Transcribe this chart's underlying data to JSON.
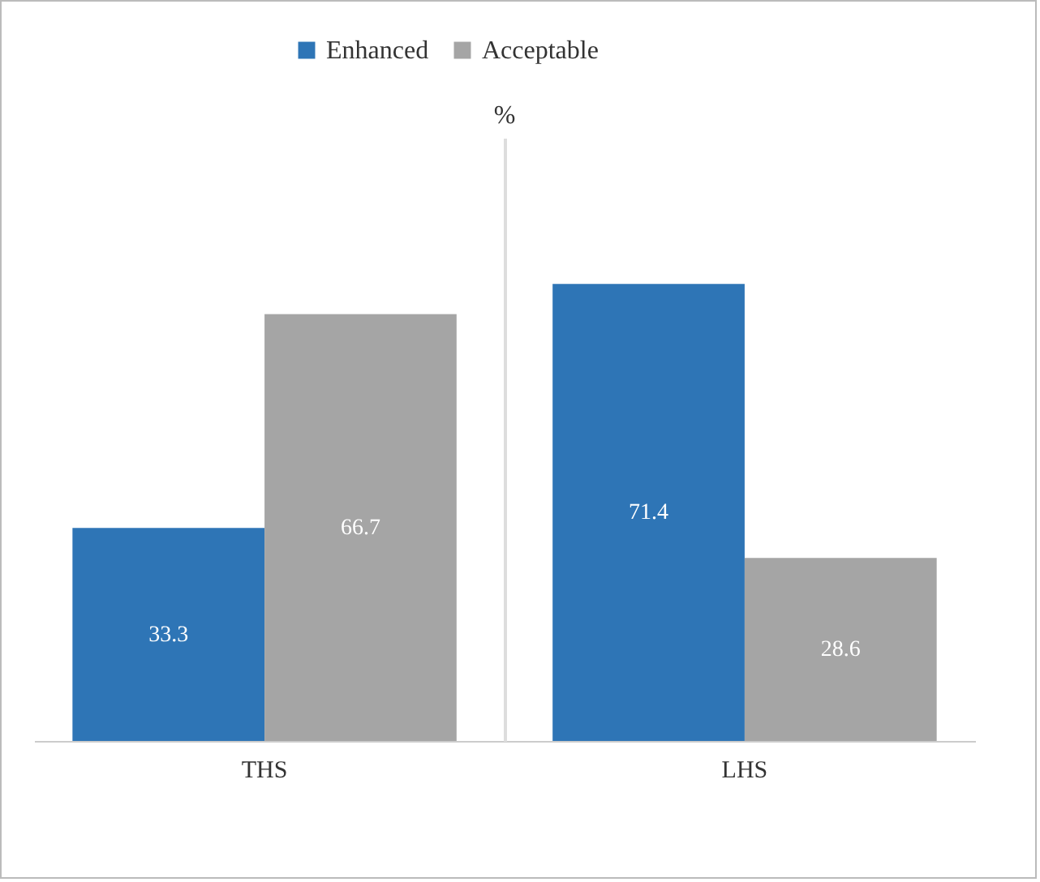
{
  "chart_data": {
    "type": "bar",
    "annotations": [
      "%"
    ],
    "categories": [
      "THS",
      "LHS"
    ],
    "series": [
      {
        "name": "Enhanced",
        "color": "#2e75b6",
        "values": [
          33.3,
          71.4
        ]
      },
      {
        "name": "Acceptable",
        "color": "#a5a5a5",
        "values": [
          66.7,
          28.6
        ]
      }
    ],
    "data_labels": true,
    "legend": "top",
    "grid": false
  }
}
